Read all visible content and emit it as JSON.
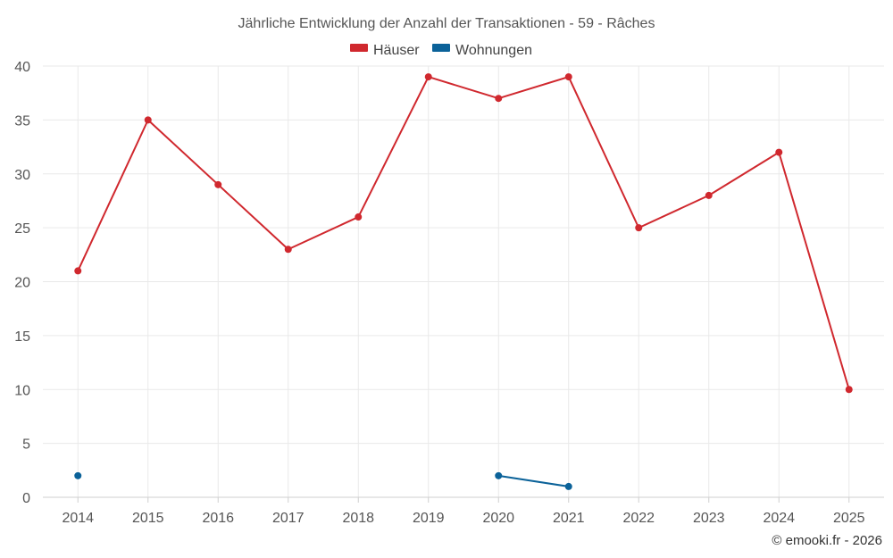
{
  "chart_data": {
    "type": "line",
    "title": "Jährliche Entwicklung der Anzahl der Transaktionen - 59 - Râches",
    "categories": [
      "2014",
      "2015",
      "2016",
      "2017",
      "2018",
      "2019",
      "2020",
      "2021",
      "2022",
      "2023",
      "2024",
      "2025"
    ],
    "ylim": [
      0,
      40
    ],
    "yticks": [
      0,
      5,
      10,
      15,
      20,
      25,
      30,
      35,
      40
    ],
    "xlabel": "",
    "ylabel": "",
    "grid": true,
    "legend_position": "top-center",
    "series": [
      {
        "name": "Häuser",
        "color": "#d0282e",
        "values": [
          21,
          35,
          29,
          23,
          26,
          39,
          37,
          39,
          25,
          28,
          32,
          10
        ]
      },
      {
        "name": "Wohnungen",
        "color": "#0b6299",
        "values": [
          2,
          null,
          null,
          null,
          null,
          null,
          2,
          1,
          null,
          null,
          null,
          null
        ]
      }
    ]
  },
  "credit": "© emooki.fr - 2026"
}
